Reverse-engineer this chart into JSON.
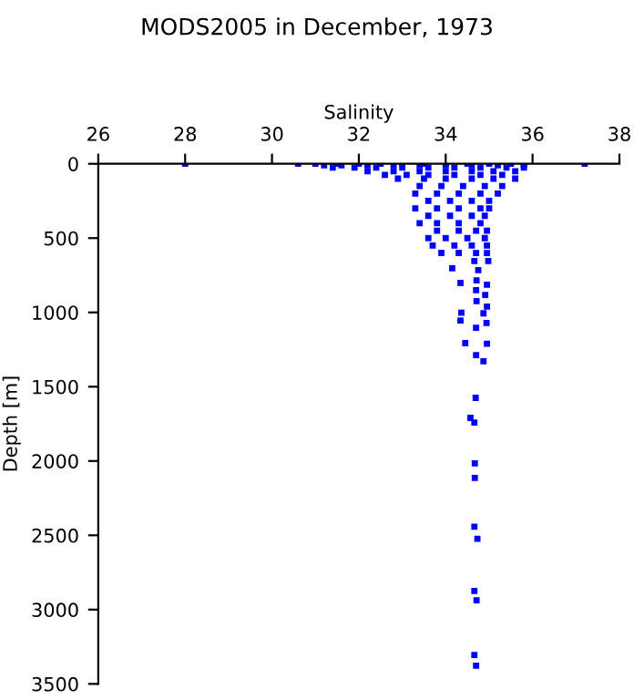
{
  "chart_data": {
    "type": "scatter",
    "title": "MODS2005 in December, 1973",
    "xlabel": "Salinity",
    "ylabel": "Depth [m]",
    "xlim": [
      26,
      38
    ],
    "xticks": [
      26,
      28,
      30,
      32,
      34,
      36,
      38
    ],
    "ylim": [
      3500,
      0
    ],
    "yticks": [
      0,
      500,
      1000,
      1500,
      2000,
      2500,
      3000,
      3500
    ],
    "grid": false,
    "marker": "square",
    "series": [
      {
        "color": "#0000ff",
        "x": [
          28.0,
          30.6,
          31.0,
          31.5,
          32.0,
          32.5,
          33.0,
          33.5,
          34.0,
          34.5,
          35.0,
          35.5,
          35.8,
          37.2,
          31.2,
          31.6,
          32.2,
          32.8,
          33.4,
          34.0,
          34.6,
          35.2,
          35.8,
          31.4,
          31.9,
          32.4,
          33.0,
          33.6,
          34.2,
          34.8,
          35.4,
          35.8,
          32.2,
          32.8,
          33.4,
          34.0,
          34.6,
          35.1,
          35.6,
          32.6,
          33.1,
          33.6,
          34.2,
          34.8,
          35.3,
          32.9,
          33.5,
          34.0,
          34.6,
          35.1,
          35.6,
          33.4,
          33.9,
          34.4,
          34.9,
          35.3,
          33.3,
          33.8,
          34.3,
          34.8,
          35.2,
          33.6,
          34.1,
          34.6,
          35.0,
          33.3,
          33.8,
          34.3,
          34.8,
          35.0,
          33.6,
          34.1,
          34.6,
          34.9,
          33.4,
          33.8,
          34.3,
          34.8,
          33.8,
          34.3,
          34.7,
          34.95,
          33.6,
          34.0,
          34.5,
          34.9,
          33.7,
          34.2,
          34.6,
          34.95,
          33.9,
          34.3,
          34.7,
          34.95,
          34.66,
          34.98,
          34.15,
          34.75,
          34.71,
          34.34,
          34.95,
          34.7,
          34.91,
          34.71,
          34.95,
          34.36,
          34.87,
          34.34,
          34.94,
          34.7,
          34.45,
          34.95,
          34.7,
          34.87,
          34.69,
          34.57,
          34.66,
          34.67,
          34.67,
          34.66,
          34.73,
          34.66,
          34.71,
          34.66,
          34.7
        ],
        "values": [
          0,
          0,
          0,
          0,
          0,
          0,
          0,
          0,
          0,
          0,
          0,
          0,
          0,
          0,
          10,
          10,
          10,
          10,
          10,
          10,
          10,
          10,
          10,
          25,
          25,
          25,
          25,
          25,
          25,
          25,
          25,
          25,
          50,
          50,
          50,
          50,
          50,
          50,
          50,
          75,
          75,
          75,
          75,
          75,
          75,
          100,
          100,
          100,
          100,
          100,
          100,
          150,
          150,
          150,
          150,
          150,
          200,
          200,
          200,
          200,
          200,
          250,
          250,
          250,
          250,
          300,
          300,
          300,
          300,
          300,
          350,
          350,
          350,
          350,
          400,
          400,
          400,
          400,
          450,
          450,
          450,
          450,
          500,
          500,
          500,
          500,
          550,
          550,
          550,
          550,
          600,
          600,
          600,
          600,
          654,
          654,
          703,
          716,
          785,
          802,
          814,
          851,
          883,
          924,
          961,
          1002,
          1006,
          1055,
          1071,
          1104,
          1207,
          1211,
          1288,
          1329,
          1575,
          1710,
          1742,
          2016,
          2114,
          2442,
          2524,
          2875,
          2937,
          3305,
          3378
        ]
      }
    ]
  }
}
